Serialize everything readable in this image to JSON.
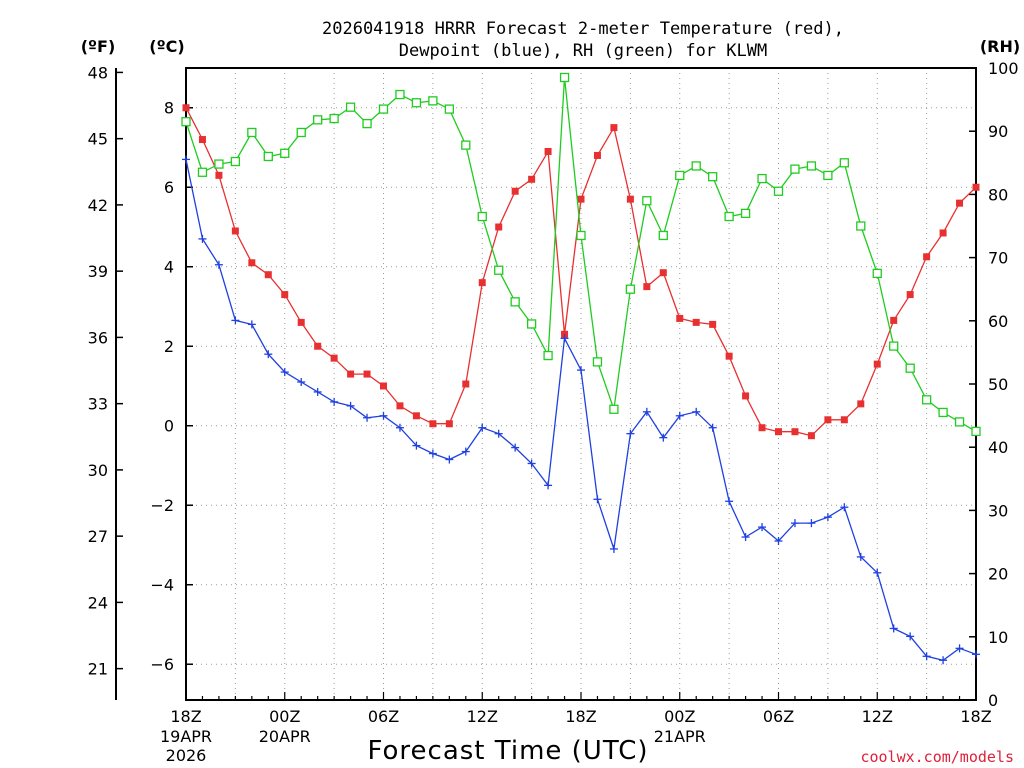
{
  "chart_data": {
    "type": "line",
    "title_line1": "2026041918 HRRR Forecast 2-meter Temperature (red),",
    "title_line2": "Dewpoint (blue), RH (green) for KLWM",
    "xlabel": "Forecast Time (UTC)",
    "credit": "coolwx.com/models",
    "units": {
      "fahrenheit": "(ºF)",
      "celsius": "(ºC)",
      "rh": "(RH)"
    },
    "x_range_hours": [
      0,
      48
    ],
    "celsius_range": [
      -6.9,
      9.0
    ],
    "rh_range": [
      0,
      100
    ],
    "grid": true,
    "x_ticks": [
      {
        "hour": 0,
        "label": "18Z",
        "date": [
          "19APR",
          "2026"
        ]
      },
      {
        "hour": 6,
        "label": "00Z",
        "date": [
          "20APR"
        ]
      },
      {
        "hour": 12,
        "label": "06Z",
        "date": []
      },
      {
        "hour": 18,
        "label": "12Z",
        "date": []
      },
      {
        "hour": 24,
        "label": "18Z",
        "date": []
      },
      {
        "hour": 30,
        "label": "00Z",
        "date": [
          "21APR"
        ]
      },
      {
        "hour": 36,
        "label": "06Z",
        "date": []
      },
      {
        "hour": 42,
        "label": "12Z",
        "date": []
      },
      {
        "hour": 48,
        "label": "18Z",
        "date": []
      }
    ],
    "fahrenheit_ticks": [
      {
        "value": 48,
        "label": "48"
      },
      {
        "value": 45,
        "label": "45"
      },
      {
        "value": 42,
        "label": "42"
      },
      {
        "value": 39,
        "label": "39"
      },
      {
        "value": 36,
        "label": "36"
      },
      {
        "value": 33,
        "label": "33"
      },
      {
        "value": 30,
        "label": "30"
      },
      {
        "value": 27,
        "label": "27"
      },
      {
        "value": 24,
        "label": "24"
      },
      {
        "value": 21,
        "label": "21"
      }
    ],
    "celsius_ticks": [
      {
        "value": 8,
        "label": "8"
      },
      {
        "value": 6,
        "label": "6"
      },
      {
        "value": 4,
        "label": "4"
      },
      {
        "value": 2,
        "label": "2"
      },
      {
        "value": 0,
        "label": "0"
      },
      {
        "value": -2,
        "label": "−2"
      },
      {
        "value": -4,
        "label": "−4"
      },
      {
        "value": -6,
        "label": "−6"
      }
    ],
    "rh_ticks": [
      {
        "value": 100,
        "label": "100"
      },
      {
        "value": 90,
        "label": "90"
      },
      {
        "value": 80,
        "label": "80"
      },
      {
        "value": 70,
        "label": "70"
      },
      {
        "value": 60,
        "label": "60"
      },
      {
        "value": 50,
        "label": "50"
      },
      {
        "value": 40,
        "label": "40"
      },
      {
        "value": 30,
        "label": "30"
      },
      {
        "value": 20,
        "label": "20"
      },
      {
        "value": 10,
        "label": "10"
      },
      {
        "value": 0,
        "label": "0"
      }
    ],
    "series": [
      {
        "key": "temperature",
        "axis": "celsius",
        "color": "#e83030",
        "marker": "filled-square",
        "values": [
          8.0,
          7.2,
          6.3,
          4.9,
          4.1,
          3.8,
          3.3,
          2.6,
          2.0,
          1.7,
          1.3,
          1.3,
          1.0,
          0.5,
          0.25,
          0.05,
          0.05,
          1.05,
          3.6,
          5.0,
          5.9,
          6.2,
          6.9,
          2.3,
          5.7,
          6.8,
          7.5,
          5.7,
          3.5,
          3.85,
          2.7,
          2.6,
          2.55,
          1.75,
          0.75,
          -0.05,
          -0.15,
          -0.15,
          -0.25,
          0.15,
          0.15,
          0.55,
          1.55,
          2.65,
          3.3,
          4.25,
          4.85,
          5.6,
          6.0
        ]
      },
      {
        "key": "dewpoint",
        "axis": "celsius",
        "color": "#2040e0",
        "marker": "plus",
        "values": [
          6.7,
          4.7,
          4.05,
          2.65,
          2.55,
          1.8,
          1.35,
          1.1,
          0.85,
          0.6,
          0.5,
          0.2,
          0.25,
          -0.05,
          -0.5,
          -0.7,
          -0.85,
          -0.65,
          -0.05,
          -0.2,
          -0.55,
          -0.95,
          -1.5,
          2.2,
          1.4,
          -1.85,
          -3.1,
          -0.2,
          0.35,
          -0.3,
          0.25,
          0.35,
          -0.05,
          -1.9,
          -2.8,
          -2.55,
          -2.9,
          -2.45,
          -2.45,
          -2.3,
          -2.05,
          -3.3,
          -3.7,
          -5.1,
          -5.3,
          -5.8,
          -5.9,
          -5.6,
          -5.75
        ]
      },
      {
        "key": "rh",
        "axis": "rh",
        "color": "#20cc20",
        "marker": "open-square",
        "values": [
          91.5,
          83.5,
          84.8,
          85.2,
          89.8,
          86.0,
          86.5,
          89.8,
          91.8,
          92.0,
          93.8,
          91.2,
          93.5,
          95.8,
          94.5,
          94.8,
          93.5,
          87.8,
          76.5,
          68.0,
          63.0,
          59.5,
          54.5,
          98.5,
          73.5,
          53.5,
          46.0,
          65.0,
          79.0,
          73.5,
          83.0,
          84.5,
          82.8,
          76.5,
          77.0,
          82.5,
          80.5,
          84.0,
          84.5,
          83.0,
          85.0,
          75.0,
          67.5,
          56.0,
          52.5,
          47.5,
          45.5,
          44.0,
          42.5
        ]
      }
    ]
  }
}
